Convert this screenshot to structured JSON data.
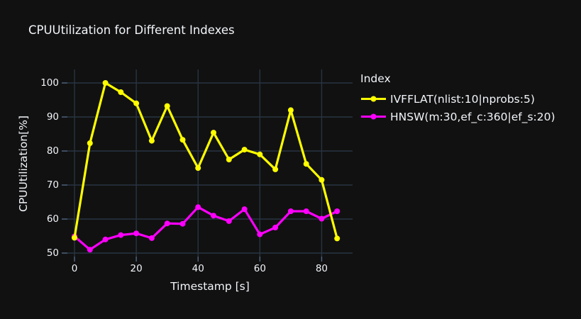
{
  "title": "CPUUtilization for Different Indexes",
  "chart_data": {
    "type": "line",
    "title": "CPUUtilization for Different Indexes",
    "xlabel": "Timestamp [s]",
    "ylabel": "CPUUtilization[%]",
    "legend_title": "Index",
    "legend_position": "right",
    "grid": true,
    "x": [
      0,
      5,
      10,
      15,
      20,
      25,
      30,
      35,
      40,
      45,
      50,
      55,
      60,
      65,
      70,
      75,
      80,
      85
    ],
    "series": [
      {
        "name": "IVFFLAT(nlist:10|nprobs:5)",
        "color": "#ffff00",
        "values": [
          54.5,
          82.3,
          100,
          97.3,
          94,
          83,
          93.2,
          83.3,
          75,
          85.4,
          77.5,
          80.4,
          79,
          74.6,
          92,
          76.2,
          71.5,
          54.3
        ]
      },
      {
        "name": "HNSW(m:30,ef_c:360|ef_s:20)",
        "color": "#ff00ff",
        "values": [
          54.9,
          51,
          54,
          55.3,
          55.8,
          54.4,
          58.7,
          58.6,
          63.5,
          61,
          59.4,
          62.9,
          55.5,
          57.5,
          62.3,
          62.3,
          60.1,
          62.3
        ]
      }
    ],
    "xticks": [
      0,
      20,
      40,
      60,
      80
    ],
    "yticks": [
      50,
      60,
      70,
      80,
      90,
      100
    ],
    "xlim": [
      -2.3,
      90.0
    ],
    "ylim": [
      48.96,
      103.96
    ],
    "colors": {
      "background": "#111111",
      "grid": "#283442",
      "tick": "#506784",
      "text": "#f2f5fa"
    }
  }
}
